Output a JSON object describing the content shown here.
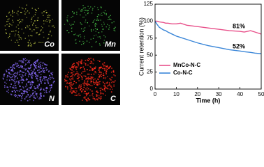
{
  "eds_maps": [
    {
      "label": "Co",
      "color": "#c8d24a"
    },
    {
      "label": "Mn",
      "color": "#4fd24f"
    },
    {
      "label": "N",
      "color": "#8a6cff"
    },
    {
      "label": "C",
      "color": "#ff2a1a"
    }
  ],
  "chart_data": {
    "type": "line",
    "xlabel": "Time (h)",
    "ylabel": "Current retention (%)",
    "xlim": [
      0,
      50
    ],
    "xticks": [
      0,
      10,
      20,
      30,
      40,
      50
    ],
    "ylim": [
      0,
      125
    ],
    "yticks": [
      0,
      25,
      50,
      75,
      100,
      125
    ],
    "legend": "lower left",
    "x": [
      0,
      1,
      2,
      4,
      5,
      6,
      8,
      10,
      12,
      15,
      20,
      25,
      30,
      35,
      40,
      42,
      45,
      47,
      50
    ],
    "series": [
      {
        "name": "MnCo-N-C",
        "color": "#e8508a",
        "values": [
          100,
          100,
          99,
          98,
          97,
          97,
          96,
          96,
          97,
          94,
          92,
          90,
          88,
          86,
          85,
          84,
          86,
          84,
          81
        ]
      },
      {
        "name": "Co-N-C",
        "color": "#3a86d8",
        "values": [
          100,
          95,
          91,
          87,
          86,
          84,
          81,
          78,
          76,
          73,
          68,
          64,
          61,
          58,
          56,
          55,
          54,
          53,
          52
        ]
      }
    ],
    "annotations": [
      "81%",
      "52%"
    ]
  }
}
